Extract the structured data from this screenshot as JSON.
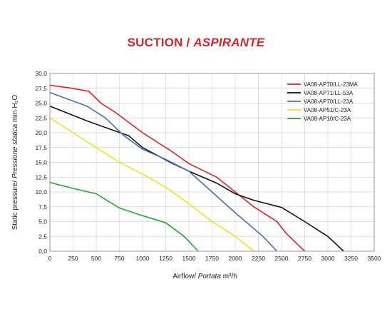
{
  "title": {
    "main": "SUCTION / ",
    "italic": "ASPIRANTE"
  },
  "chart_data": {
    "type": "line",
    "xlabel": {
      "plain": "Airflow/ ",
      "italic": "Portata",
      "unit": " m³/h"
    },
    "ylabel": {
      "plain": "Static pressure/ ",
      "italic": "Pressione statica",
      "unit": "  mm H₂O"
    },
    "xlim": [
      0,
      3500
    ],
    "ylim": [
      0,
      30
    ],
    "xticks": [
      0,
      250,
      500,
      750,
      1000,
      1250,
      1500,
      1750,
      2000,
      2250,
      2500,
      2750,
      3000,
      3250,
      3500
    ],
    "yticks": [
      "0,0",
      "2,5",
      "5,0",
      "7,5",
      "10,0",
      "12,5",
      "15,0",
      "17,5",
      "20,0",
      "22,5",
      "25,0",
      "27,5",
      "30,0"
    ],
    "grid": true,
    "legend_position": "top-right",
    "series": [
      {
        "name": "VA08-AP70/LL-23MA",
        "color": "#d9232a",
        "x": [
          0,
          200,
          420,
          550,
          700,
          1000,
          1300,
          1500,
          1800,
          2000,
          2200,
          2350,
          2450,
          2550,
          2750
        ],
        "y": [
          28.0,
          27.6,
          27.0,
          25.0,
          23.5,
          20.0,
          17.0,
          14.8,
          12.5,
          10.0,
          7.5,
          6.0,
          5.0,
          3.0,
          0.0
        ]
      },
      {
        "name": "VA08-AP71/LL-53A",
        "color": "#111111",
        "x": [
          0,
          400,
          850,
          1000,
          1300,
          1500,
          1800,
          2000,
          2200,
          2400,
          2500,
          2750,
          3000,
          3170
        ],
        "y": [
          24.5,
          22.0,
          19.5,
          17.5,
          15.0,
          13.5,
          11.5,
          9.7,
          8.6,
          7.8,
          7.4,
          5.0,
          2.5,
          0.0
        ]
      },
      {
        "name": "VA08-AP70/LL-23A",
        "color": "#4a6fb2",
        "x": [
          0,
          400,
          600,
          800,
          1000,
          1250,
          1500,
          1750,
          2000,
          2150,
          2300,
          2450
        ],
        "y": [
          26.8,
          24.5,
          22.5,
          19.5,
          17.2,
          15.5,
          13.5,
          10.0,
          6.5,
          4.5,
          2.5,
          0.0
        ]
      },
      {
        "name": "VA08-AP51/C-23A",
        "color": "#e6e42e",
        "x": [
          0,
          250,
          500,
          750,
          1000,
          1250,
          1500,
          1750,
          2000,
          2200
        ],
        "y": [
          22.5,
          20.0,
          17.5,
          15.0,
          13.0,
          10.8,
          8.0,
          5.0,
          2.5,
          0.0
        ]
      },
      {
        "name": "VA08-AP10/C-23A",
        "color": "#2aa23c",
        "x": [
          0,
          250,
          500,
          750,
          1000,
          1250,
          1450,
          1600
        ],
        "y": [
          11.6,
          10.6,
          9.7,
          7.3,
          6.0,
          4.8,
          2.5,
          0.0
        ]
      }
    ]
  }
}
